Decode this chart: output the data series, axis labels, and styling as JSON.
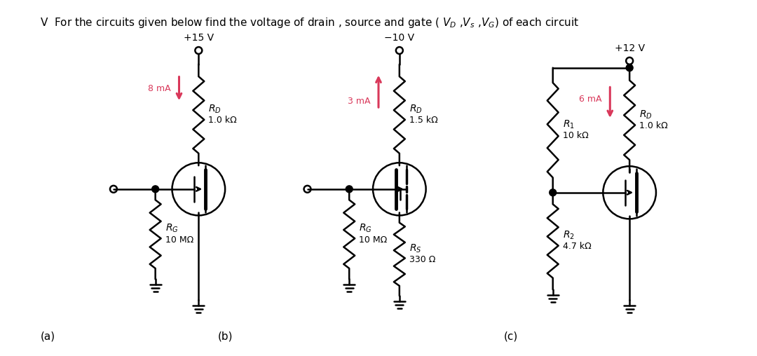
{
  "bg_color": "#ffffff",
  "text_color": "#000000",
  "pink_color": "#d9385a",
  "title": "V  For the circuits given below find the voltage of drain , source and gate ( $V_D$ ,$V_s$ ,$V_G$) of each circuit",
  "circuits": {
    "a": {
      "vdd": "+15 V",
      "current": "8 mA",
      "rd": "R_D",
      "rd_val": "1.0 kΩ",
      "rg": "R_G",
      "rg_val": "10 MΩ",
      "label": "(a)"
    },
    "b": {
      "vdd": "−10 V",
      "current": "3 mA",
      "rd": "R_D",
      "rd_val": "1.5 kΩ",
      "rg": "R_G",
      "rg_val": "10 MΩ",
      "rs": "R_S",
      "rs_val": "330 Ω",
      "label": "(b)"
    },
    "c": {
      "vdd": "+12 V",
      "current": "6 mA",
      "rd": "R_D",
      "rd_val": "1.0 kΩ",
      "r1": "R_1",
      "r1_val": "10 kΩ",
      "r2": "R_2",
      "r2_val": "4.7 kΩ",
      "label": "(c)"
    }
  }
}
